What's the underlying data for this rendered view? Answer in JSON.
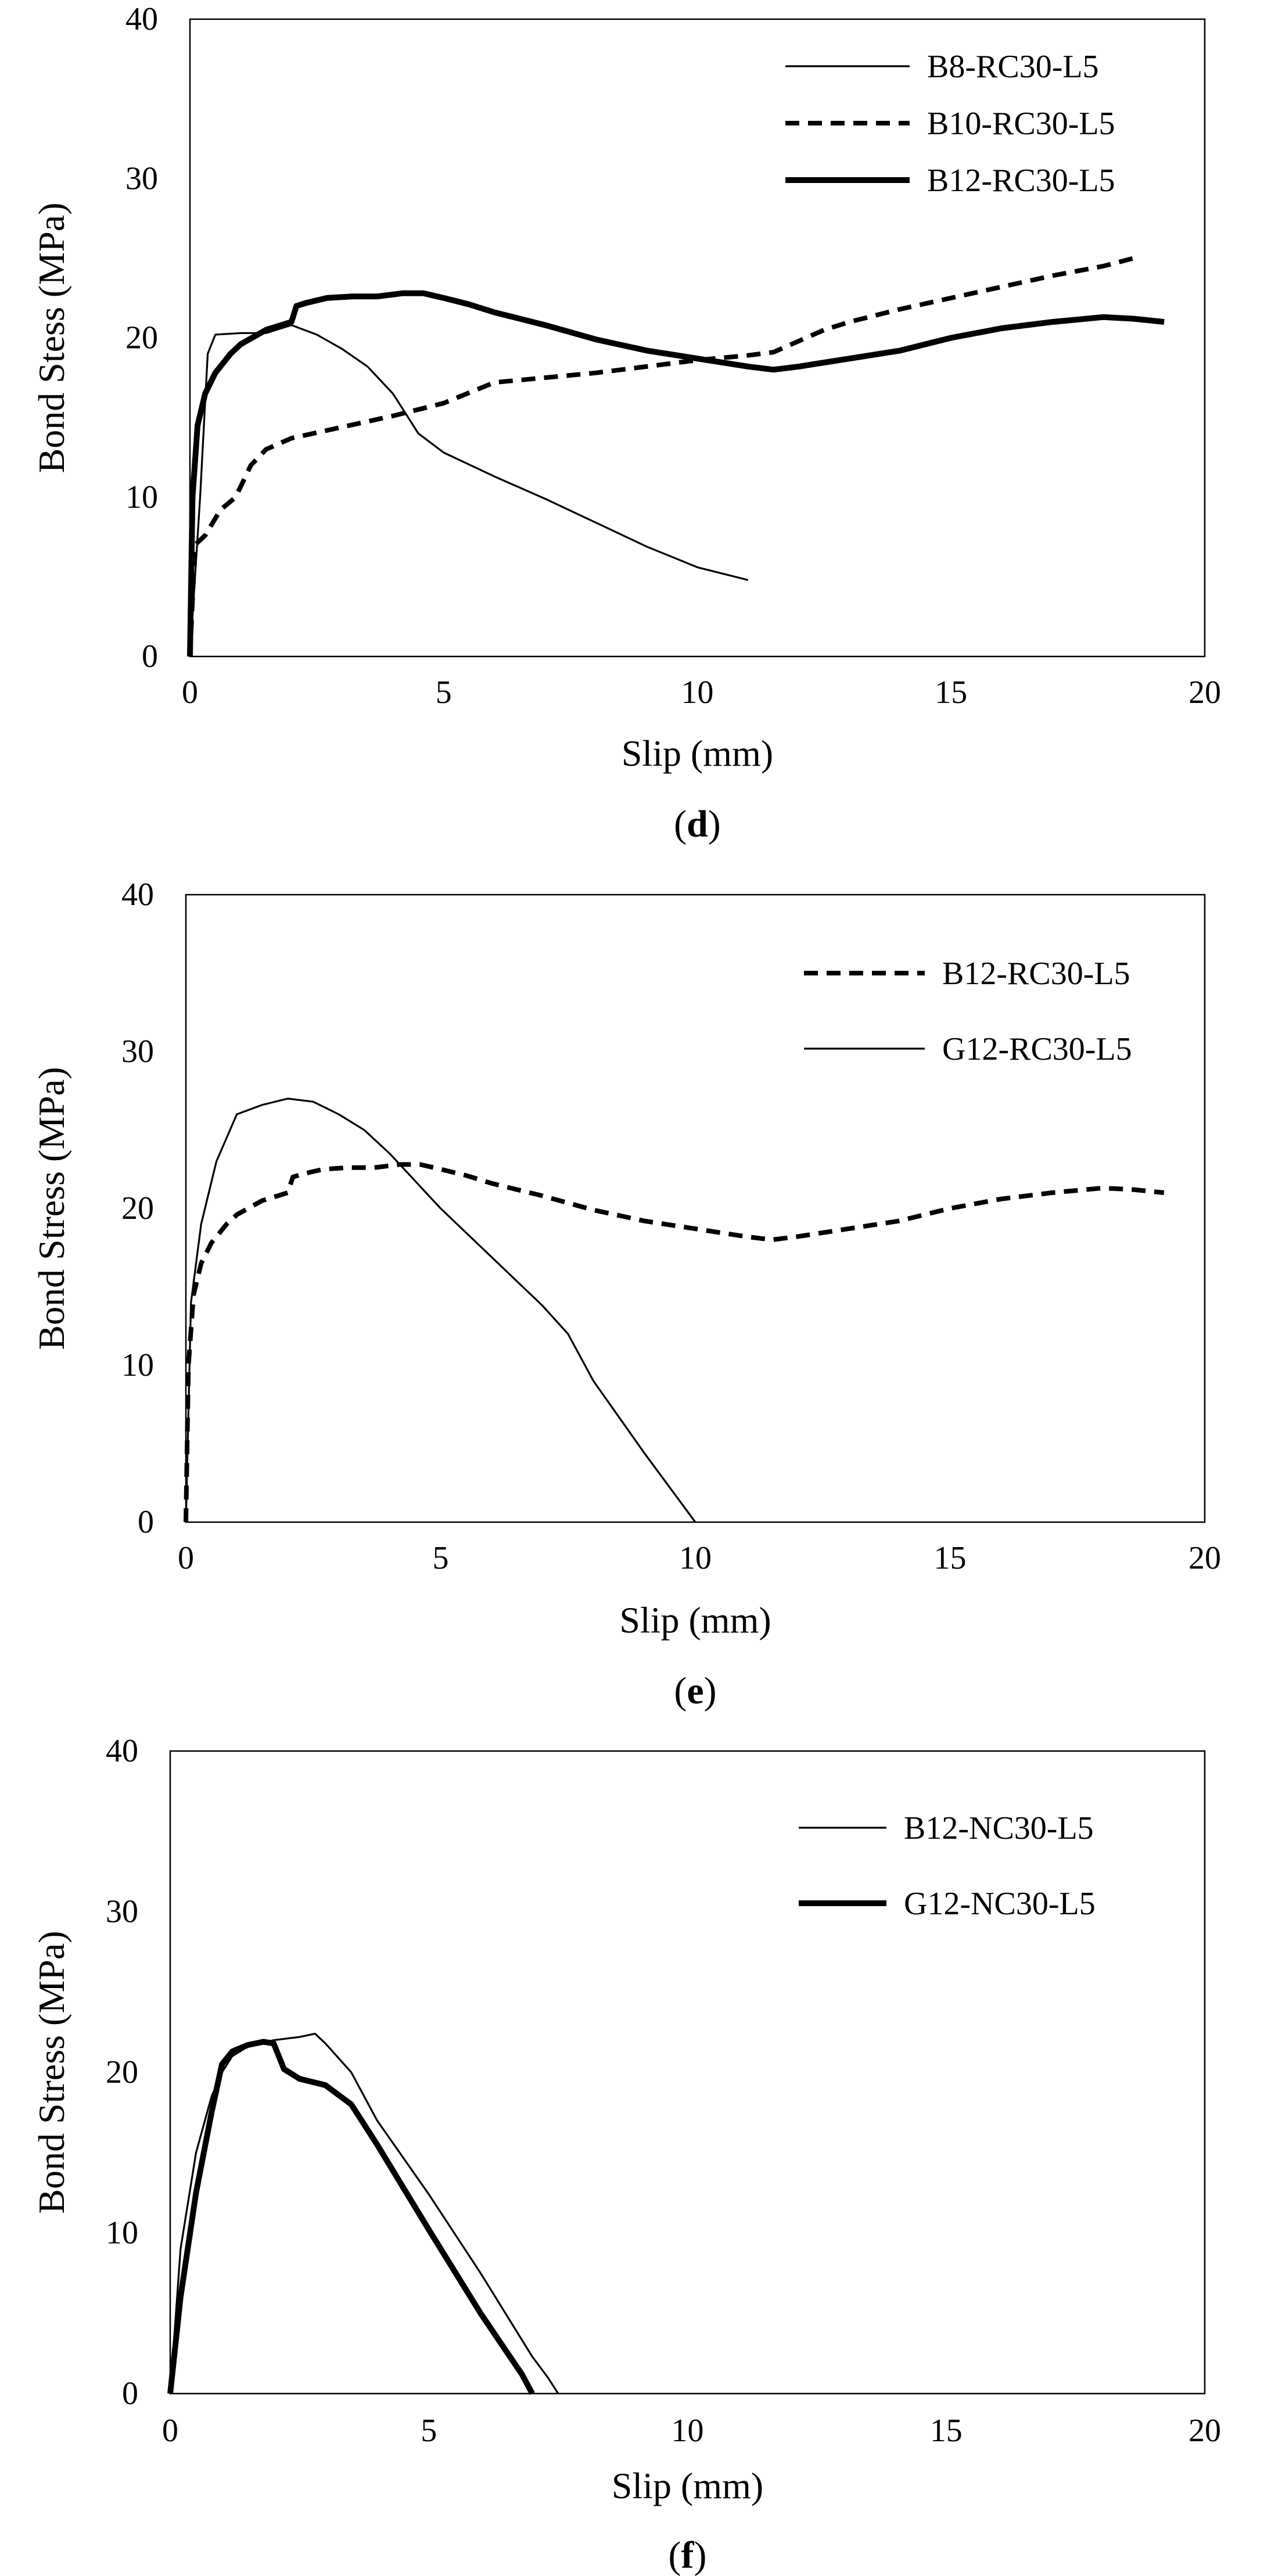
{
  "chart_data": [
    {
      "id": "d",
      "type": "line",
      "panel_label": "d",
      "xlabel": "Slip (mm)",
      "ylabel": "Bond  Stess (MPa)",
      "xlim": [
        0,
        20
      ],
      "ylim": [
        0,
        40
      ],
      "xticks": [
        0,
        5,
        10,
        15,
        20
      ],
      "yticks": [
        0,
        10,
        20,
        30,
        40
      ],
      "legend_position": "top-right",
      "series": [
        {
          "name": "B8-RC30-L5",
          "style": "thin",
          "x": [
            0,
            0.2,
            0.35,
            0.5,
            1,
            1.5,
            2,
            2.5,
            3,
            3.5,
            4,
            4.5,
            5,
            6,
            7,
            8,
            9,
            10,
            10.5,
            11
          ],
          "y": [
            0,
            10,
            19,
            20.2,
            20.3,
            20.3,
            20.8,
            20.2,
            19.3,
            18.2,
            16.5,
            14,
            12.8,
            11.3,
            9.9,
            8.4,
            6.9,
            5.6,
            5.2,
            4.8
          ]
        },
        {
          "name": "B10-RC30-L5",
          "style": "dashed",
          "x": [
            0,
            0.1,
            0.3,
            0.6,
            0.9,
            1.2,
            1.5,
            2,
            3,
            4,
            5,
            6,
            7,
            8,
            9,
            10,
            11,
            11.5,
            12,
            12.5,
            13,
            14,
            15,
            16,
            17,
            18,
            18.6
          ],
          "y": [
            0,
            7,
            7.6,
            9.2,
            10,
            12,
            13,
            13.7,
            14.4,
            15.1,
            15.9,
            17.2,
            17.5,
            17.8,
            18.2,
            18.6,
            18.9,
            19.1,
            19.8,
            20.5,
            21,
            21.8,
            22.5,
            23.2,
            23.9,
            24.5,
            25
          ]
        },
        {
          "name": "B12-RC30-L5",
          "style": "thick",
          "x": [
            0,
            0.05,
            0.15,
            0.3,
            0.5,
            0.8,
            1,
            1.5,
            2,
            2.1,
            2.3,
            2.7,
            3.2,
            3.7,
            4.2,
            4.6,
            5,
            5.5,
            6,
            7,
            8,
            9,
            10,
            11,
            11.5,
            12,
            13,
            14,
            15,
            16,
            17,
            18,
            18.6,
            19.2
          ],
          "y": [
            0,
            10,
            14.5,
            16.5,
            17.8,
            19,
            19.6,
            20.5,
            21,
            22,
            22.2,
            22.5,
            22.6,
            22.6,
            22.8,
            22.8,
            22.5,
            22.1,
            21.6,
            20.8,
            19.9,
            19.2,
            18.7,
            18.2,
            18,
            18.2,
            18.7,
            19.2,
            20,
            20.6,
            21,
            21.3,
            21.2,
            21
          ]
        }
      ]
    },
    {
      "id": "e",
      "type": "line",
      "panel_label": "e",
      "xlabel": "Slip (mm)",
      "ylabel": "Bond Stress (MPa)",
      "xlim": [
        0,
        20
      ],
      "ylim": [
        0,
        40
      ],
      "xticks": [
        0,
        5,
        10,
        15,
        20
      ],
      "yticks": [
        0,
        10,
        20,
        30,
        40
      ],
      "legend_position": "top-right",
      "series": [
        {
          "name": "B12-RC30-L5",
          "style": "dashed",
          "x": [
            0,
            0.05,
            0.15,
            0.3,
            0.5,
            0.8,
            1,
            1.5,
            2,
            2.1,
            2.3,
            2.7,
            3.2,
            3.7,
            4.2,
            4.6,
            5,
            5.5,
            6,
            7,
            8,
            9,
            10,
            11,
            11.5,
            12,
            13,
            14,
            15,
            16,
            17,
            18,
            18.6,
            19.2
          ],
          "y": [
            0,
            10,
            14.5,
            16.5,
            17.8,
            19,
            19.6,
            20.5,
            21,
            22,
            22.2,
            22.5,
            22.6,
            22.6,
            22.8,
            22.8,
            22.5,
            22.1,
            21.6,
            20.8,
            19.9,
            19.2,
            18.7,
            18.2,
            18,
            18.2,
            18.7,
            19.2,
            20,
            20.6,
            21,
            21.3,
            21.2,
            21
          ]
        },
        {
          "name": "G12-RC30-L5",
          "style": "thin",
          "x": [
            0,
            0.1,
            0.3,
            0.6,
            1,
            1.5,
            2,
            2.5,
            3,
            3.5,
            4,
            5,
            6,
            7,
            7.5,
            7.8,
            8,
            9,
            10
          ],
          "y": [
            0,
            14,
            19,
            23,
            26,
            26.6,
            27,
            26.8,
            26,
            25,
            23.5,
            20,
            16.9,
            13.8,
            12,
            10.2,
            9,
            4.4,
            0
          ]
        }
      ]
    },
    {
      "id": "f",
      "type": "line",
      "panel_label": "f",
      "xlabel": "Slip (mm)",
      "ylabel": "Bond Stress (MPa)",
      "xlim": [
        0,
        20
      ],
      "ylim": [
        0,
        40
      ],
      "xticks": [
        0,
        5,
        10,
        15,
        20
      ],
      "yticks": [
        0,
        10,
        20,
        30,
        40
      ],
      "legend_position": "top-right",
      "series": [
        {
          "name": "B12-NC30-L5",
          "style": "thin",
          "x": [
            0,
            0.2,
            0.5,
            0.8,
            1,
            1.2,
            1.5,
            2,
            2.5,
            2.8,
            3,
            3.5,
            4,
            5,
            6,
            7,
            7.3,
            7.5
          ],
          "y": [
            0,
            9,
            15,
            18.5,
            20,
            21,
            21.6,
            22,
            22.2,
            22.4,
            21.8,
            20,
            17,
            12.4,
            7.5,
            2.3,
            1,
            0
          ]
        },
        {
          "name": "G12-NC30-L5",
          "style": "thick",
          "x": [
            0,
            0.2,
            0.5,
            0.8,
            1,
            1.2,
            1.5,
            1.8,
            2,
            2.2,
            2.5,
            3,
            3.5,
            4,
            5,
            6,
            6.8,
            7
          ],
          "y": [
            0,
            6,
            12.5,
            17.5,
            20.5,
            21.3,
            21.7,
            21.9,
            21.8,
            20.2,
            19.6,
            19.2,
            18,
            15.5,
            10.2,
            5,
            1.2,
            0
          ]
        }
      ]
    }
  ]
}
